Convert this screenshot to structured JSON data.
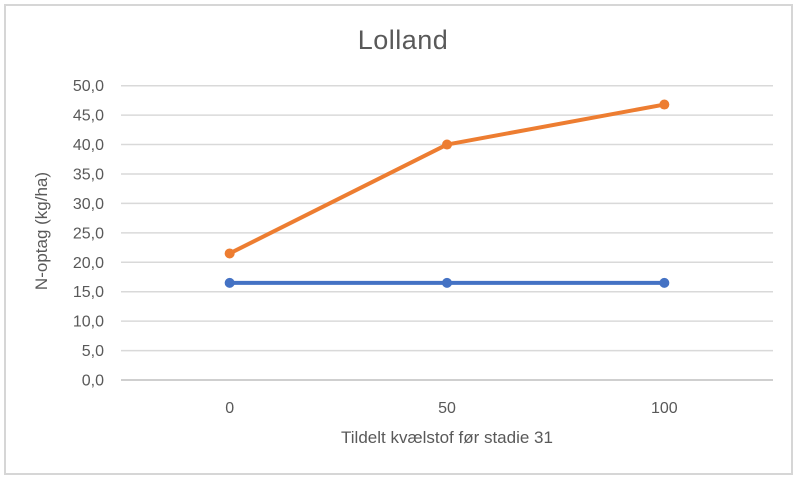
{
  "window": {
    "background": "#ffffff",
    "frame_border_color": "#d6d6d6"
  },
  "chart_data": {
    "type": "line",
    "title": "Lolland",
    "xlabel": "Tildelt kvælstof før stadie 31",
    "ylabel": "N-optag (kg/ha)",
    "categories": [
      "0",
      "50",
      "100"
    ],
    "series": [
      {
        "id": "orange-series",
        "color": "#ED7D31",
        "values": [
          21.5,
          40.0,
          46.8
        ]
      },
      {
        "id": "blue-series",
        "color": "#4472C4",
        "values": [
          16.5,
          16.5,
          16.5
        ]
      }
    ],
    "ylim": [
      0,
      50
    ],
    "ytick_step": 5,
    "ytick_labels": [
      "0,0",
      "5,0",
      "10,0",
      "15,0",
      "20,0",
      "25,0",
      "30,0",
      "35,0",
      "40,0",
      "45,0",
      "50,0"
    ],
    "grid": true,
    "legend": "none",
    "gridline_color": "#D9D9D9",
    "axis_line_color": "#BFBFBF",
    "text_color": "#595959",
    "marker_radius": 5,
    "line_width": 4
  }
}
